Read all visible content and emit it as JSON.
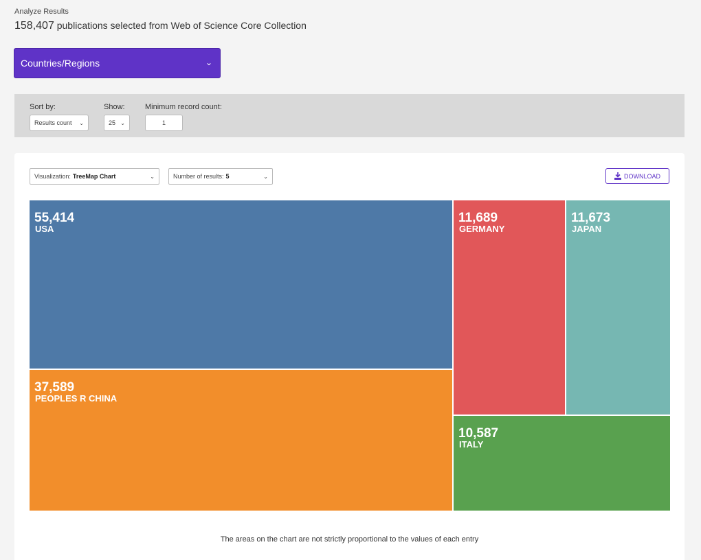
{
  "header": {
    "title": "Analyze Results",
    "count": "158,407",
    "subtitle": "publications selected from Web of Science Core Collection"
  },
  "field": {
    "label": "Countries/Regions"
  },
  "filters": {
    "sort_label": "Sort by:",
    "sort_value": "Results count",
    "show_label": "Show:",
    "show_value": "25",
    "min_label": "Minimum record count:",
    "min_value": "1"
  },
  "controls": {
    "viz_label": "Visualization:",
    "viz_value": "TreeMap Chart",
    "num_label": "Number of results:",
    "num_value": "5",
    "download_label": "DOWNLOAD"
  },
  "chart_data": {
    "type": "treemap",
    "items": [
      {
        "name": "USA",
        "value": 55414,
        "label": "55,414",
        "color": "#4e79a7"
      },
      {
        "name": "PEOPLES R CHINA",
        "value": 37589,
        "label": "37,589",
        "color": "#f28e2b"
      },
      {
        "name": "GERMANY",
        "value": 11689,
        "label": "11,689",
        "color": "#e15759"
      },
      {
        "name": "JAPAN",
        "value": 11673,
        "label": "11,673",
        "color": "#76b7b2"
      },
      {
        "name": "ITALY",
        "value": 10587,
        "label": "10,587",
        "color": "#59a14f"
      }
    ]
  },
  "note": "The areas on the chart are not strictly proportional to the values of each entry"
}
